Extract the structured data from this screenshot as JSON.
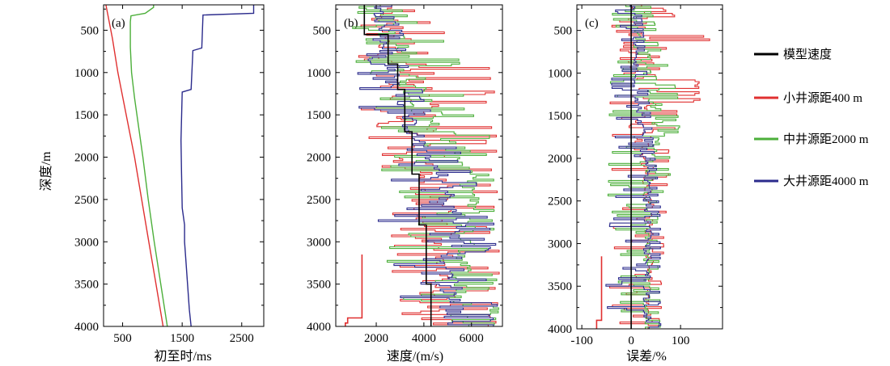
{
  "figure": {
    "ylabel": "深度/m",
    "legend": {
      "placement": "right",
      "items": [
        {
          "name": "模型速度",
          "color": "#000000"
        },
        {
          "name": "小井源距400 m",
          "color": "#e03030"
        },
        {
          "name": "中井源距2000 m",
          "color": "#4caf3a"
        },
        {
          "name": "大井源距4000 m",
          "color": "#2b2b8c"
        }
      ]
    }
  },
  "chart_data": [
    {
      "type": "line",
      "panel_label": "(a)",
      "xlabel": "初至时/ms",
      "ylabel": "深度/m",
      "xlim": [
        180,
        2870
      ],
      "ylim": [
        4000,
        200
      ],
      "xticks": [
        "500",
        "1500",
        "2500"
      ],
      "xtick_values": [
        500,
        1500,
        2500
      ],
      "yticks": [
        "500",
        "1000",
        "1500",
        "2000",
        "2500",
        "3000",
        "3500",
        "4000"
      ],
      "ytick_values": [
        500,
        1000,
        1500,
        2000,
        2500,
        3000,
        3500,
        4000
      ],
      "series": [
        {
          "name": "小井源距400 m",
          "color": "#e03030",
          "depth": [
            200,
            600,
            1000,
            1500,
            2000,
            2500,
            3000,
            3500,
            4000
          ],
          "values": [
            220,
            330,
            420,
            560,
            700,
            820,
            940,
            1060,
            1180
          ]
        },
        {
          "name": "中井源距2000 m",
          "color": "#4caf3a",
          "depth": [
            200,
            230,
            300,
            330,
            400,
            700,
            1000,
            1300,
            1600,
            2000,
            2500,
            3000,
            3500,
            4000
          ],
          "values": [
            1020,
            1020,
            880,
            640,
            630,
            630,
            650,
            700,
            760,
            840,
            930,
            1030,
            1140,
            1250
          ]
        },
        {
          "name": "大井源距4000 m",
          "color": "#2b2b8c",
          "depth": [
            200,
            300,
            320,
            710,
            740,
            1200,
            1230,
            1800,
            2200,
            2600,
            2800,
            3000,
            3200,
            3500,
            3800,
            4000
          ],
          "values": [
            2700,
            2700,
            1850,
            1830,
            1680,
            1650,
            1500,
            1480,
            1490,
            1500,
            1540,
            1540,
            1560,
            1590,
            1620,
            1650
          ]
        }
      ]
    },
    {
      "type": "line",
      "panel_label": "(b)",
      "xlabel": "速度/(m/s)",
      "ylabel": "",
      "xlim": [
        300,
        7300
      ],
      "ylim": [
        4000,
        200
      ],
      "xticks": [
        "2000",
        "4000",
        "6000"
      ],
      "xtick_values": [
        2000,
        4000,
        6000
      ],
      "yticks": [
        "500",
        "1000",
        "1500",
        "2000",
        "2500",
        "3000",
        "3500",
        "4000"
      ],
      "ytick_values": [
        500,
        1000,
        1500,
        2000,
        2500,
        3000,
        3500,
        4000
      ],
      "model": {
        "name": "模型速度",
        "color": "#000000",
        "depth": [
          200,
          550,
          900,
          1200,
          1700,
          2200,
          2800,
          3500,
          4000
        ],
        "values": [
          1500,
          2500,
          2900,
          3200,
          3500,
          3800,
          4100,
          4300,
          4300
        ]
      },
      "small_offset_lowzone": {
        "name": "小井源距400 m",
        "color": "#e03030",
        "depth": [
          3150,
          3150,
          3900,
          3900,
          3960,
          3960,
          4000
        ],
        "values": [
          1400,
          1400,
          1400,
          800,
          800,
          700,
          700
        ]
      },
      "series": [
        {
          "name": "小井源距400 m",
          "color": "#e03030",
          "center": [
            [
              200,
              2200
            ],
            [
              700,
              2700
            ],
            [
              1100,
              3300
            ],
            [
              1500,
              3300
            ],
            [
              2000,
              3700
            ],
            [
              2500,
              4100
            ],
            [
              3000,
              4300
            ],
            [
              4000,
              4300
            ]
          ],
          "low_spread": [
            [
              200,
              800
            ],
            [
              1500,
              1400
            ],
            [
              2500,
              2500
            ],
            [
              4000,
              2800
            ]
          ],
          "high": [
            [
              200,
              3300
            ],
            [
              600,
              5600
            ],
            [
              700,
              7000
            ],
            [
              1400,
              7000
            ],
            [
              1500,
              7100
            ],
            [
              4000,
              7200
            ]
          ]
        },
        {
          "name": "中井源距2000 m",
          "color": "#4caf3a",
          "center": [
            [
              200,
              2000
            ],
            [
              700,
              2700
            ],
            [
              1200,
              3500
            ],
            [
              1600,
              4500
            ],
            [
              2000,
              5500
            ],
            [
              2600,
              6000
            ],
            [
              3100,
              5500
            ],
            [
              4000,
              5400
            ]
          ],
          "low_spread": [
            [
              200,
              800
            ],
            [
              1500,
              1300
            ],
            [
              2500,
              2200
            ],
            [
              4000,
              2600
            ]
          ],
          "high": [
            [
              200,
              3000
            ],
            [
              700,
              5400
            ],
            [
              1600,
              6300
            ],
            [
              1800,
              7100
            ],
            [
              4000,
              7200
            ]
          ]
        },
        {
          "name": "大井源距4000 m",
          "color": "#2b2b8c",
          "center": [
            [
              200,
              2000
            ],
            [
              700,
              2300
            ],
            [
              1200,
              2700
            ],
            [
              1800,
              3600
            ],
            [
              2300,
              4700
            ],
            [
              2800,
              5300
            ],
            [
              3200,
              5000
            ],
            [
              4000,
              5000
            ]
          ],
          "low_spread": [
            [
              200,
              800
            ],
            [
              1500,
              1200
            ],
            [
              2500,
              2000
            ],
            [
              4000,
              2500
            ]
          ],
          "high": [
            [
              200,
              2800
            ],
            [
              900,
              3600
            ],
            [
              1500,
              4400
            ],
            [
              2000,
              5800
            ],
            [
              2600,
              7000
            ],
            [
              4000,
              7200
            ]
          ]
        }
      ]
    },
    {
      "type": "line",
      "panel_label": "(c)",
      "xlabel": "误差/%",
      "ylabel": "",
      "xlim": [
        -110,
        185
      ],
      "ylim": [
        4000,
        200
      ],
      "xticks": [
        "-100",
        "0",
        "100"
      ],
      "xtick_values": [
        -100,
        0,
        100
      ],
      "yticks": [
        "500",
        "1000",
        "1500",
        "2000",
        "2500",
        "3000",
        "3500",
        "4000"
      ],
      "ytick_values": [
        500,
        1000,
        1500,
        2000,
        2500,
        3000,
        3500,
        4000
      ],
      "model": {
        "name": "模型速度",
        "color": "#000000",
        "depth": [
          200,
          4000
        ],
        "values": [
          0,
          0
        ]
      },
      "small_offset_lowzone": {
        "name": "小井源距400 m",
        "color": "#e03030",
        "depth": [
          3150,
          3150,
          3900,
          3900,
          4000
        ],
        "values": [
          -60,
          -60,
          -60,
          -70,
          -70
        ]
      },
      "series": [
        {
          "name": "小井源距400 m",
          "color": "#e03030",
          "center": [
            [
              200,
              10
            ],
            [
              700,
              15
            ],
            [
              1200,
              25
            ],
            [
              1700,
              20
            ],
            [
              2200,
              30
            ],
            [
              2600,
              35
            ],
            [
              4000,
              35
            ]
          ],
          "low_spread": [
            [
              200,
              -40
            ],
            [
              1500,
              -45
            ],
            [
              2500,
              -50
            ],
            [
              4000,
              -55
            ]
          ],
          "high": [
            [
              200,
              60
            ],
            [
              550,
              150
            ],
            [
              700,
              180
            ],
            [
              750,
              140
            ],
            [
              1300,
              140
            ],
            [
              1400,
              100
            ],
            [
              1700,
              95
            ],
            [
              1800,
              80
            ],
            [
              4000,
              60
            ]
          ]
        },
        {
          "name": "中井源距2000 m",
          "color": "#4caf3a",
          "center": [
            [
              200,
              5
            ],
            [
              700,
              20
            ],
            [
              1200,
              40
            ],
            [
              1700,
              55
            ],
            [
              2000,
              40
            ],
            [
              2500,
              30
            ],
            [
              4000,
              30
            ]
          ],
          "low_spread": [
            [
              200,
              -40
            ],
            [
              1500,
              -45
            ],
            [
              2500,
              -50
            ],
            [
              4000,
              -55
            ]
          ],
          "high": [
            [
              200,
              40
            ],
            [
              700,
              60
            ],
            [
              1200,
              95
            ],
            [
              1700,
              100
            ],
            [
              1800,
              80
            ],
            [
              2200,
              80
            ],
            [
              2500,
              55
            ],
            [
              4000,
              60
            ]
          ]
        },
        {
          "name": "大井源距4000 m",
          "color": "#2b2b8c",
          "center": [
            [
              200,
              0
            ],
            [
              700,
              5
            ],
            [
              1200,
              10
            ],
            [
              1700,
              20
            ],
            [
              2300,
              30
            ],
            [
              2800,
              30
            ],
            [
              4000,
              30
            ]
          ],
          "low_spread": [
            [
              200,
              -40
            ],
            [
              1500,
              -45
            ],
            [
              2500,
              -50
            ],
            [
              4000,
              -55
            ]
          ],
          "high": [
            [
              200,
              20
            ],
            [
              800,
              30
            ],
            [
              1500,
              40
            ],
            [
              2200,
              55
            ],
            [
              2600,
              60
            ],
            [
              4000,
              60
            ]
          ]
        }
      ]
    }
  ]
}
